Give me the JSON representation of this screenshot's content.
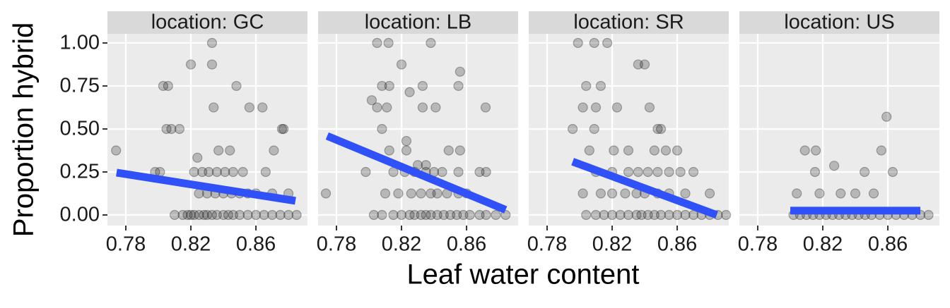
{
  "chart_data": {
    "type": "facet-scatter",
    "x_label": "Leaf water content",
    "y_label": "Proportion hybrid",
    "xlim": [
      0.7687,
      0.8917
    ],
    "xticks": [
      0.78,
      0.82,
      0.86
    ],
    "ylim": [
      -0.0615,
      1.053
    ],
    "yticks": [
      {
        "value": 0,
        "label": "0.00"
      },
      0.25,
      {
        "value": 0.5,
        "label": "0.50"
      },
      0.75,
      {
        "value": 1,
        "label": "1.00"
      }
    ],
    "grid": true,
    "point_color": "#000000",
    "line_color": "#3050f8",
    "panels": [
      {
        "title": "location: GC",
        "x": [
          0.774,
          0.798,
          0.801,
          0.803,
          0.806,
          0.805,
          0.808,
          0.813,
          0.82,
          0.833,
          0.833,
          0.834,
          0.848,
          0.844,
          0.856,
          0.864,
          0.871,
          0.876,
          0.877,
          0.824,
          0.837,
          0.825,
          0.83,
          0.835,
          0.84,
          0.845,
          0.85,
          0.855,
          0.86,
          0.87,
          0.88,
          0.822,
          0.827,
          0.831,
          0.836,
          0.841,
          0.846,
          0.852,
          0.866,
          0.81,
          0.815,
          0.818,
          0.82,
          0.822,
          0.825,
          0.828,
          0.83,
          0.833,
          0.836,
          0.84,
          0.843,
          0.846,
          0.85,
          0.855,
          0.86,
          0.865,
          0.87,
          0.875,
          0.88,
          0.885
        ],
        "y": [
          0.375,
          0.25,
          0.25,
          0.75,
          0.75,
          0.5,
          0.5,
          0.5,
          0.875,
          1,
          0.875,
          0.625,
          0.75,
          0.375,
          0.625,
          0.625,
          0.375,
          0.5,
          0.5,
          0.333,
          0.375,
          0.125,
          0.125,
          0.125,
          0.125,
          0.125,
          0.125,
          0.125,
          0.125,
          0.125,
          0.125,
          0.25,
          0.25,
          0.25,
          0.25,
          0.25,
          0.25,
          0.25,
          0.25,
          0,
          0,
          0,
          0,
          0,
          0,
          0,
          0,
          0,
          0,
          0,
          0,
          0,
          0,
          0,
          0,
          0,
          0,
          0,
          0,
          0
        ],
        "fit_x": [
          0.7743,
          0.8843
        ],
        "fit_y": [
          0.246,
          0.082
        ]
      },
      {
        "title": "location: LB",
        "x": [
          0.7735,
          0.798,
          0.8017,
          0.805,
          0.812,
          0.805,
          0.808,
          0.8125,
          0.808,
          0.811,
          0.82,
          0.825,
          0.833,
          0.838,
          0.833,
          0.841,
          0.855,
          0.856,
          0.8717,
          0.8125,
          0.823,
          0.823,
          0.849,
          0.856,
          0.815,
          0.822,
          0.828,
          0.835,
          0.84,
          0.845,
          0.855,
          0.868,
          0.872,
          0.81,
          0.818,
          0.826,
          0.832,
          0.838,
          0.842,
          0.848,
          0.855,
          0.86,
          0.83,
          0.835,
          0.803,
          0.808,
          0.815,
          0.82,
          0.825,
          0.828,
          0.832,
          0.835,
          0.838,
          0.842,
          0.846,
          0.85,
          0.854,
          0.858,
          0.862,
          0.868,
          0.872,
          0.878,
          0.884
        ],
        "y": [
          0.125,
          0.25,
          0.667,
          1,
          1,
          0.625,
          0.75,
          0.75,
          0.5,
          0.625,
          0.875,
          0.714,
          0.75,
          1,
          0.625,
          0.625,
          0.75,
          0.833,
          0.625,
          0.375,
          0.43,
          0.375,
          0.375,
          0.375,
          0.25,
          0.25,
          0.25,
          0.25,
          0.25,
          0.25,
          0.25,
          0.25,
          0.25,
          0.125,
          0.125,
          0.125,
          0.125,
          0.125,
          0.125,
          0.125,
          0.125,
          0.125,
          0.29,
          0.29,
          0,
          0,
          0,
          0,
          0,
          0,
          0,
          0,
          0,
          0,
          0,
          0,
          0,
          0,
          0,
          0,
          0,
          0,
          0
        ],
        "fit_x": [
          0.7743,
          0.884
        ],
        "fit_y": [
          0.459,
          0.03
        ]
      },
      {
        "title": "location: SR",
        "x": [
          0.7957,
          0.799,
          0.809,
          0.817,
          0.804,
          0.802,
          0.81,
          0.823,
          0.813,
          0.809,
          0.836,
          0.84,
          0.848,
          0.85,
          0.843,
          0.806,
          0.821,
          0.83,
          0.846,
          0.853,
          0.86,
          0.81,
          0.82,
          0.83,
          0.836,
          0.842,
          0.848,
          0.855,
          0.862,
          0.87,
          0.802,
          0.813,
          0.82,
          0.828,
          0.835,
          0.84,
          0.848,
          0.855,
          0.865,
          0.88,
          0.804,
          0.81,
          0.815,
          0.82,
          0.825,
          0.83,
          0.835,
          0.838,
          0.842,
          0.846,
          0.85,
          0.855,
          0.86,
          0.865,
          0.87,
          0.875,
          0.88,
          0.885,
          0.89
        ],
        "y": [
          0.5,
          1,
          1,
          1,
          0.75,
          0.625,
          0.625,
          0.625,
          0.75,
          0.5,
          0.875,
          0.875,
          0.5,
          0.5,
          0.625,
          0.375,
          0.375,
          0.375,
          0.375,
          0.375,
          0.375,
          0.25,
          0.25,
          0.25,
          0.25,
          0.25,
          0.25,
          0.25,
          0.25,
          0.25,
          0.125,
          0.125,
          0.125,
          0.125,
          0.125,
          0.125,
          0.125,
          0.125,
          0.125,
          0.125,
          0,
          0,
          0,
          0,
          0,
          0,
          0,
          0,
          0,
          0,
          0,
          0,
          0,
          0,
          0,
          0,
          0,
          0,
          0
        ],
        "fit_x": [
          0.7957,
          0.8843
        ],
        "fit_y": [
          0.31,
          0.0
        ]
      },
      {
        "title": "location: US",
        "x": [
          0.809,
          0.8157,
          0.8152,
          0.804,
          0.827,
          0.8592,
          0.856,
          0.863,
          0.8457,
          0.8513,
          0.831,
          0.84,
          0.818,
          0.802,
          0.806,
          0.81,
          0.814,
          0.818,
          0.822,
          0.826,
          0.83,
          0.834,
          0.838,
          0.842,
          0.846,
          0.85,
          0.855,
          0.86,
          0.865,
          0.87,
          0.875,
          0.88,
          0.885
        ],
        "y": [
          0.375,
          0.375,
          0.25,
          0.125,
          0.286,
          0.571,
          0.375,
          0.25,
          0.25,
          0.125,
          0.125,
          0.125,
          0.125,
          0,
          0,
          0,
          0,
          0,
          0,
          0,
          0,
          0,
          0,
          0,
          0,
          0,
          0,
          0,
          0,
          0,
          0,
          0,
          0
        ],
        "fit_x": [
          0.8,
          0.88
        ],
        "fit_y": [
          0.025,
          0.025
        ]
      }
    ]
  }
}
